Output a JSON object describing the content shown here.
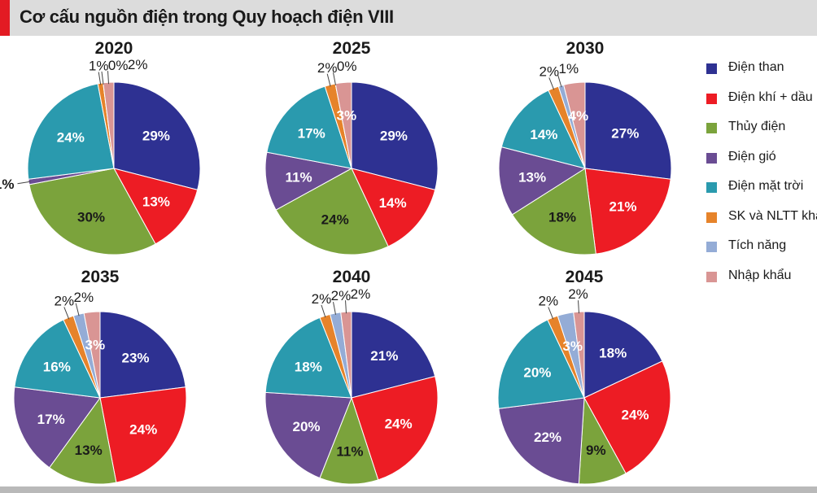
{
  "header": {
    "title": "Cơ cấu nguồn điện trong Quy hoạch điện VIII"
  },
  "legend": [
    {
      "label": "Điện than",
      "color": "#2e3192"
    },
    {
      "label": "Điện khí + dầu",
      "color": "#ed1c24"
    },
    {
      "label": "Thủy điện",
      "color": "#7ba33c"
    },
    {
      "label": "Điện gió",
      "color": "#6a4c93"
    },
    {
      "label": "Điện mặt trời",
      "color": "#2a9aae"
    },
    {
      "label": "SK và NLTT khác",
      "color": "#e6832a"
    },
    {
      "label": "Tích năng",
      "color": "#94acd6"
    },
    {
      "label": "Nhập khẩu",
      "color": "#d99594"
    }
  ],
  "chart_data": [
    {
      "type": "pie",
      "title": "2020",
      "categories": [
        "Điện than",
        "Điện khí + dầu",
        "Thủy điện",
        "Điện gió",
        "Điện mặt trời",
        "SK và NLTT khác",
        "Tích năng",
        "Nhập khẩu"
      ],
      "values": [
        29,
        13,
        30,
        1,
        24,
        1,
        0,
        2
      ],
      "labels": [
        "29%",
        "13%",
        "30%",
        "1%",
        "24%",
        "1%",
        "0%",
        "2%"
      ]
    },
    {
      "type": "pie",
      "title": "2025",
      "categories": [
        "Điện than",
        "Điện khí + dầu",
        "Thủy điện",
        "Điện gió",
        "Điện mặt trời",
        "SK và NLTT khác",
        "Tích năng",
        "Nhập khẩu"
      ],
      "values": [
        29,
        14,
        24,
        11,
        17,
        2,
        0,
        3
      ],
      "labels": [
        "29%",
        "14%",
        "24%",
        "11%",
        "17%",
        "2%",
        "0%",
        "3%"
      ]
    },
    {
      "type": "pie",
      "title": "2030",
      "categories": [
        "Điện than",
        "Điện khí + dầu",
        "Thủy điện",
        "Điện gió",
        "Điện mặt trời",
        "SK và NLTT khác",
        "Tích năng",
        "Nhập khẩu"
      ],
      "values": [
        27,
        21,
        18,
        13,
        14,
        2,
        1,
        4
      ],
      "labels": [
        "27%",
        "21%",
        "18%",
        "13%",
        "14%",
        "2%",
        "1%",
        "4%"
      ]
    },
    {
      "type": "pie",
      "title": "2035",
      "categories": [
        "Điện than",
        "Điện khí + dầu",
        "Thủy điện",
        "Điện gió",
        "Điện mặt trời",
        "SK và NLTT khác",
        "Tích năng",
        "Nhập khẩu"
      ],
      "values": [
        23,
        24,
        13,
        17,
        16,
        2,
        2,
        3
      ],
      "labels": [
        "23%",
        "24%",
        "13%",
        "17%",
        "16%",
        "2%",
        "2%",
        "3%"
      ]
    },
    {
      "type": "pie",
      "title": "2040",
      "categories": [
        "Điện than",
        "Điện khí + dầu",
        "Thủy điện",
        "Điện gió",
        "Điện mặt trời",
        "SK và NLTT khác",
        "Tích năng",
        "Nhập khẩu"
      ],
      "values": [
        21,
        24,
        11,
        20,
        18,
        2,
        2,
        2
      ],
      "labels": [
        "21%",
        "24%",
        "11%",
        "20%",
        "18%",
        "2%",
        "2%",
        "2%"
      ]
    },
    {
      "type": "pie",
      "title": "2045",
      "categories": [
        "Điện than",
        "Điện khí + dầu",
        "Thủy điện",
        "Điện gió",
        "Điện mặt trời",
        "SK và NLTT khác",
        "Tích năng",
        "Nhập khẩu"
      ],
      "values": [
        18,
        24,
        9,
        22,
        20,
        2,
        3,
        2
      ],
      "labels": [
        "18%",
        "24%",
        "9%",
        "22%",
        "20%",
        "2%",
        "3%",
        "2%"
      ]
    }
  ]
}
